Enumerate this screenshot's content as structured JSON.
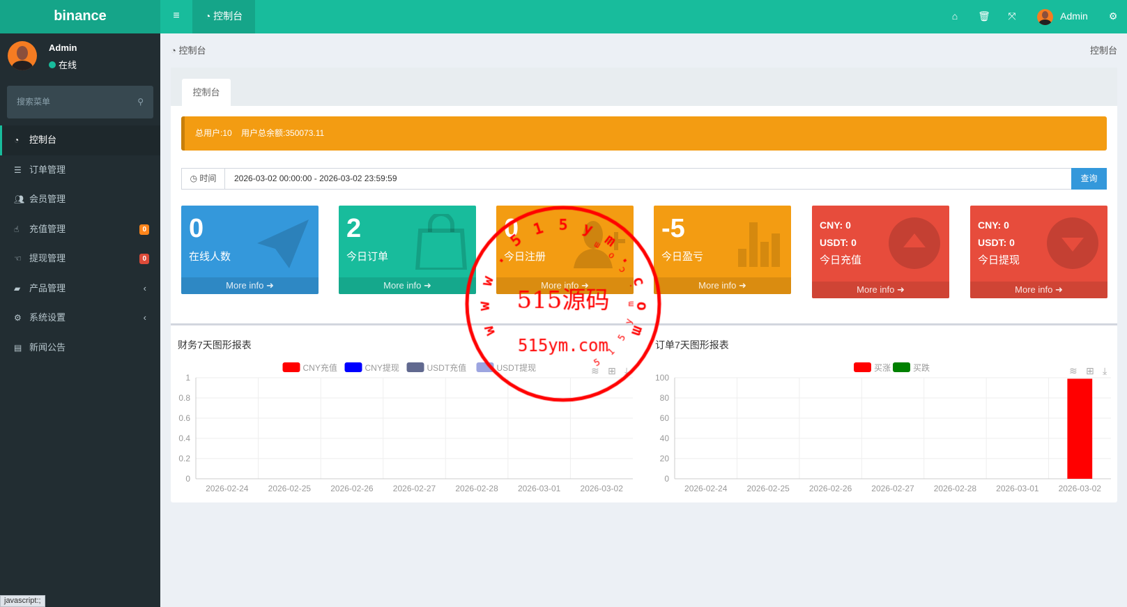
{
  "header": {
    "logo": "binance",
    "tab_label": "控制台",
    "user_name": "Admin"
  },
  "sidebar": {
    "user": {
      "name": "Admin",
      "status": "在线",
      "status_color": "#18bc9c"
    },
    "search_placeholder": "搜索菜单",
    "items": [
      {
        "label": "控制台",
        "icon": "dashboard-icon",
        "active": true
      },
      {
        "label": "订单管理",
        "icon": "list-icon"
      },
      {
        "label": "会员管理",
        "icon": "users-icon"
      },
      {
        "label": "充值管理",
        "icon": "hand-pointer-icon",
        "badge": "0",
        "badge_color": "#ff851b"
      },
      {
        "label": "提现管理",
        "icon": "hand-pointer-icon",
        "badge": "0",
        "badge_color": "#dd4b39"
      },
      {
        "label": "产品管理",
        "icon": "shopping-bag-icon",
        "expandable": true
      },
      {
        "label": "系统设置",
        "icon": "cogs-icon",
        "expandable": true
      },
      {
        "label": "新闻公告",
        "icon": "newspaper-icon"
      }
    ]
  },
  "breadcrumb": {
    "left": "控制台",
    "right": "控制台"
  },
  "panel": {
    "tab": "控制台",
    "alert": {
      "total_users": "总用户:10",
      "total_balance": "用户总余额:350073.11"
    },
    "time_filter": {
      "label": "时间",
      "value": "2026-03-02 00:00:00 - 2026-03-02 23:59:59",
      "button": "查询"
    },
    "boxes": [
      {
        "value": "0",
        "label": "在线人数",
        "more": "More info",
        "color": "#3498db",
        "icon": "paper-plane-icon"
      },
      {
        "value": "2",
        "label": "今日订单",
        "more": "More info",
        "color": "#18bc9c",
        "icon": "shopping-bag-icon"
      },
      {
        "value": "0",
        "label": "今日注册",
        "more": "More info",
        "color": "#f39c12",
        "icon": "user-plus-icon"
      },
      {
        "value": "-5",
        "label": "今日盈亏",
        "more": "More info",
        "color": "#f39c12",
        "icon": "bar-chart-icon"
      },
      {
        "cny": "CNY: 0",
        "usdt": "USDT: 0",
        "label": "今日充值",
        "more": "More info",
        "color": "#e74c3c",
        "icon": "arrow-up-circle-icon"
      },
      {
        "cny": "CNY: 0",
        "usdt": "USDT: 0",
        "label": "今日提现",
        "more": "More info",
        "color": "#e74c3c",
        "icon": "arrow-down-circle-icon"
      }
    ]
  },
  "chart_data": [
    {
      "type": "line",
      "title": "财务7天图形报表",
      "categories": [
        "2026-02-24",
        "2026-02-25",
        "2026-02-26",
        "2026-02-27",
        "2026-02-28",
        "2026-03-01",
        "2026-03-02"
      ],
      "series": [
        {
          "name": "CNY充值",
          "color": "#ff0000",
          "values": [
            0,
            0,
            0,
            0,
            0,
            0,
            0
          ]
        },
        {
          "name": "CNY提现",
          "color": "#0000ff",
          "values": [
            0,
            0,
            0,
            0,
            0,
            0,
            0
          ]
        },
        {
          "name": "USDT充值",
          "color": "#61698f",
          "values": [
            0,
            0,
            0,
            0,
            0,
            0,
            0
          ]
        },
        {
          "name": "USDT提现",
          "color": "#9da5e0",
          "values": [
            0,
            0,
            0,
            0,
            0,
            0,
            0
          ]
        }
      ],
      "ylim": [
        0,
        1
      ],
      "yticks": [
        "0",
        "0.2",
        "0.4",
        "0.6",
        "0.8",
        "1"
      ],
      "grid": true,
      "legend": "top-center"
    },
    {
      "type": "bar",
      "title": "订单7天图形报表",
      "categories": [
        "2026-02-24",
        "2026-02-25",
        "2026-02-26",
        "2026-02-27",
        "2026-02-28",
        "2026-03-01",
        "2026-03-02"
      ],
      "series": [
        {
          "name": "买涨",
          "color": "#ff0000",
          "values": [
            0,
            0,
            0,
            0,
            0,
            0,
            99
          ]
        },
        {
          "name": "买跌",
          "color": "#008000",
          "values": [
            0,
            0,
            0,
            0,
            0,
            0,
            0
          ]
        }
      ],
      "ylim": [
        0,
        100
      ],
      "yticks": [
        "0",
        "20",
        "40",
        "60",
        "80",
        "100"
      ],
      "grid": true,
      "legend": "top-center"
    }
  ],
  "watermark": {
    "center": "515源码",
    "domain": "515ym.com",
    "ring_top": "www.515ym.com",
    "ring_bottom": "515ym.com"
  },
  "statusbar": "javascript:;"
}
